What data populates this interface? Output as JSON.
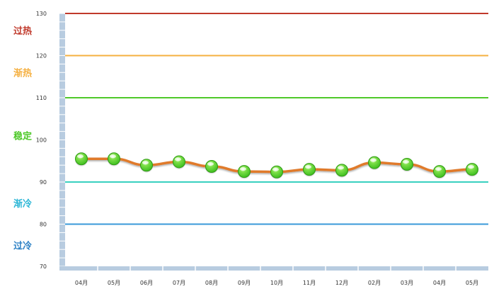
{
  "chart_data": {
    "type": "line",
    "categories": [
      "04月",
      "05月",
      "06月",
      "07月",
      "08月",
      "09月",
      "10月",
      "11月",
      "12月",
      "02月",
      "03月",
      "04月",
      "05月"
    ],
    "series": [
      {
        "values": [
          95.5,
          95.5,
          94.0,
          94.8,
          93.7,
          92.5,
          92.4,
          93.0,
          92.8,
          94.6,
          94.2,
          92.5,
          93.0
        ],
        "color": "#e07a2a",
        "marker_color": "#3fbf20"
      }
    ],
    "ylim": [
      70,
      130
    ],
    "yticks": [
      "70",
      "80",
      "90",
      "100",
      "110",
      "120",
      "130"
    ],
    "reference_lines": [
      {
        "value": 130,
        "color": "#c0392b"
      },
      {
        "value": 120,
        "color": "#f5b041"
      },
      {
        "value": 110,
        "color": "#4fc92a"
      },
      {
        "value": 90,
        "color": "#39d0c0"
      },
      {
        "value": 80,
        "color": "#3a9ad9"
      }
    ],
    "zones": [
      {
        "label": "过热",
        "color": "#c0392b"
      },
      {
        "label": "渐热",
        "color": "#f5b041"
      },
      {
        "label": "稳定",
        "color": "#4fc92a"
      },
      {
        "label": "渐冷",
        "color": "#2cb6d6"
      },
      {
        "label": "过冷",
        "color": "#2a7fc4"
      }
    ],
    "axis_color": "#b8cce0",
    "grid": false,
    "legend": "none"
  }
}
